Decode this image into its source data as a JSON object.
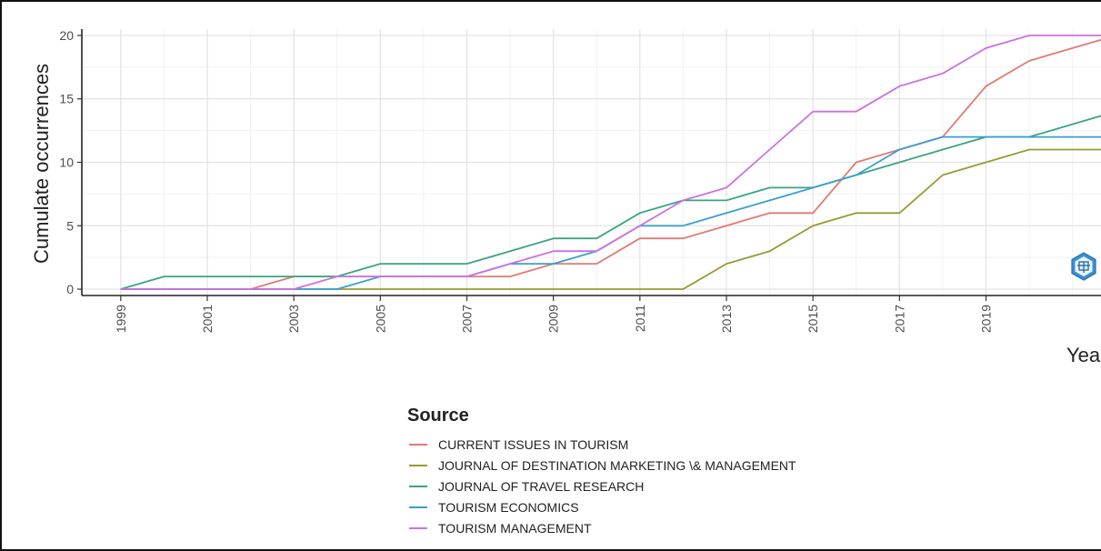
{
  "chart_data": {
    "type": "line",
    "xlabel": "Year",
    "ylabel": "Cumulate occurrences",
    "x_tick_labels": [
      "1999",
      "2001",
      "2003",
      "2005",
      "2007",
      "2009",
      "2011",
      "2013",
      "2015",
      "2017",
      "2019"
    ],
    "y_tick_labels": [
      "0",
      "5",
      "10",
      "15",
      "20"
    ],
    "xlim": [
      1998.1,
      2021.7
    ],
    "ylim": [
      -0.5,
      20.5
    ],
    "grid": true,
    "legend": {
      "title": "Source",
      "placement": "bottom"
    },
    "x": [
      1999,
      2000,
      2001,
      2002,
      2003,
      2004,
      2005,
      2006,
      2007,
      2008,
      2009,
      2010,
      2011,
      2012,
      2013,
      2014,
      2015,
      2016,
      2017,
      2018,
      2019,
      2020,
      2021,
      2022
    ],
    "series": [
      {
        "name": "CURRENT ISSUES IN TOURISM",
        "color": "#e07b72",
        "values": [
          0,
          0,
          0,
          0,
          1,
          1,
          1,
          1,
          1,
          1,
          2,
          2,
          4,
          4,
          5,
          6,
          6,
          10,
          11,
          12,
          16,
          18,
          19,
          20
        ]
      },
      {
        "name": "JOURNAL OF DESTINATION MARKETING \\& MANAGEMENT",
        "color": "#9a9a33",
        "values": [
          0,
          0,
          0,
          0,
          0,
          0,
          0,
          0,
          0,
          0,
          0,
          0,
          0,
          0,
          2,
          3,
          5,
          6,
          6,
          9,
          10,
          11,
          11,
          11
        ]
      },
      {
        "name": "JOURNAL OF TRAVEL RESEARCH",
        "color": "#3aa57f",
        "values": [
          0,
          1,
          1,
          1,
          1,
          1,
          2,
          2,
          2,
          3,
          4,
          4,
          6,
          7,
          7,
          8,
          8,
          9,
          10,
          11,
          12,
          12,
          13,
          14
        ]
      },
      {
        "name": "TOURISM ECONOMICS",
        "color": "#3a9fd0",
        "values": [
          0,
          0,
          0,
          0,
          0,
          0,
          1,
          1,
          1,
          2,
          2,
          3,
          5,
          5,
          6,
          7,
          8,
          9,
          11,
          12,
          12,
          12,
          12,
          12
        ]
      },
      {
        "name": "TOURISM MANAGEMENT",
        "color": "#cc72e0",
        "values": [
          0,
          0,
          0,
          0,
          0,
          1,
          1,
          1,
          1,
          2,
          3,
          3,
          5,
          7,
          8,
          11,
          14,
          14,
          16,
          17,
          19,
          20,
          20,
          20
        ]
      }
    ]
  }
}
